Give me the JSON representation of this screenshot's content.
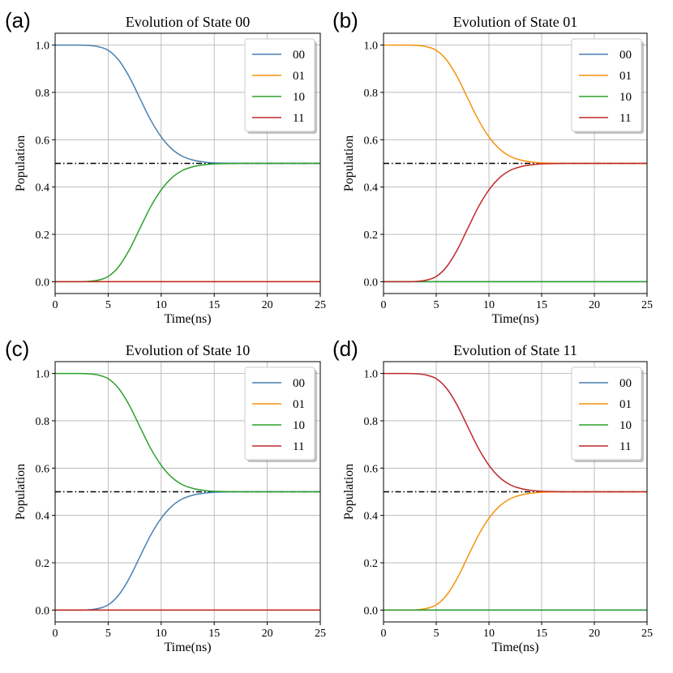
{
  "chart_data": [
    {
      "type": "line",
      "panel_label": "(a)",
      "title": "Evolution of State 00",
      "xlabel": "Time(ns)",
      "ylabel": "Population",
      "xlim": [
        0,
        25
      ],
      "ylim": [
        -0.05,
        1.05
      ],
      "xticks": [
        0,
        5,
        10,
        15,
        20,
        25
      ],
      "yticks": [
        0.0,
        0.2,
        0.4,
        0.6,
        0.8,
        1.0
      ],
      "xtick_labels": [
        "0",
        "5",
        "10",
        "15",
        "20",
        "25"
      ],
      "ytick_labels": [
        "0.0",
        "0.2",
        "0.4",
        "0.6",
        "0.8",
        "1.0"
      ],
      "grid": true,
      "legend_position": "top-right",
      "reference_line": {
        "y": 0.5,
        "style": "dash-dot",
        "color": "#000000"
      },
      "x": [
        0,
        1,
        2,
        3,
        4,
        5,
        6,
        7,
        8,
        9,
        10,
        11,
        12,
        13,
        14,
        15,
        16,
        17,
        18,
        19,
        20,
        21,
        22,
        23,
        24,
        25
      ],
      "series": [
        {
          "name": "00",
          "color": "#4a7fb0",
          "values": [
            1.0,
            1.0,
            1.0,
            0.999,
            0.994,
            0.978,
            0.936,
            0.865,
            0.774,
            0.684,
            0.612,
            0.561,
            0.53,
            0.514,
            0.506,
            0.502,
            0.501,
            0.5,
            0.5,
            0.5,
            0.5,
            0.5,
            0.5,
            0.5,
            0.5,
            0.5
          ]
        },
        {
          "name": "01",
          "color": "#f5920e",
          "values": [
            0.0,
            0.0,
            0.0,
            0.0,
            0.0,
            0.0,
            0.0,
            0.0,
            0.0,
            0.0,
            0.0,
            0.0,
            0.0,
            0.0,
            0.0,
            0.0,
            0.0,
            0.0,
            0.0,
            0.0,
            0.0,
            0.0,
            0.0,
            0.0,
            0.0,
            0.0
          ]
        },
        {
          "name": "10",
          "color": "#2ca02c",
          "values": [
            0.0,
            0.0,
            0.0,
            0.001,
            0.006,
            0.022,
            0.064,
            0.135,
            0.226,
            0.316,
            0.388,
            0.439,
            0.47,
            0.486,
            0.494,
            0.498,
            0.499,
            0.5,
            0.5,
            0.5,
            0.5,
            0.5,
            0.5,
            0.5,
            0.5,
            0.5
          ]
        },
        {
          "name": "11",
          "color": "#c0282b",
          "values": [
            0.0,
            0.0,
            0.0,
            0.0,
            0.0,
            0.0,
            0.0,
            0.0,
            0.0,
            0.0,
            0.0,
            0.0,
            0.0,
            0.0,
            0.0,
            0.0,
            0.0,
            0.0,
            0.0,
            0.0,
            0.0,
            0.0,
            0.0,
            0.0,
            0.0,
            0.0
          ]
        }
      ]
    },
    {
      "type": "line",
      "panel_label": "(b)",
      "title": "Evolution of State 01",
      "xlabel": "Time(ns)",
      "ylabel": "Population",
      "xlim": [
        0,
        25
      ],
      "ylim": [
        -0.05,
        1.05
      ],
      "xticks": [
        0,
        5,
        10,
        15,
        20,
        25
      ],
      "yticks": [
        0.0,
        0.2,
        0.4,
        0.6,
        0.8,
        1.0
      ],
      "xtick_labels": [
        "0",
        "5",
        "10",
        "15",
        "20",
        "25"
      ],
      "ytick_labels": [
        "0.0",
        "0.2",
        "0.4",
        "0.6",
        "0.8",
        "1.0"
      ],
      "grid": true,
      "legend_position": "top-right",
      "reference_line": {
        "y": 0.5,
        "style": "dash-dot",
        "color": "#000000"
      },
      "x": [
        0,
        1,
        2,
        3,
        4,
        5,
        6,
        7,
        8,
        9,
        10,
        11,
        12,
        13,
        14,
        15,
        16,
        17,
        18,
        19,
        20,
        21,
        22,
        23,
        24,
        25
      ],
      "series": [
        {
          "name": "00",
          "color": "#4a7fb0",
          "values": [
            0.0,
            0.0,
            0.0,
            0.0,
            0.0,
            0.0,
            0.0,
            0.0,
            0.0,
            0.0,
            0.0,
            0.0,
            0.0,
            0.0,
            0.0,
            0.0,
            0.0,
            0.0,
            0.0,
            0.0,
            0.0,
            0.0,
            0.0,
            0.0,
            0.0,
            0.0
          ]
        },
        {
          "name": "01",
          "color": "#f5920e",
          "values": [
            1.0,
            1.0,
            1.0,
            0.999,
            0.994,
            0.978,
            0.936,
            0.865,
            0.774,
            0.684,
            0.612,
            0.561,
            0.53,
            0.514,
            0.506,
            0.502,
            0.501,
            0.5,
            0.5,
            0.5,
            0.5,
            0.5,
            0.5,
            0.5,
            0.5,
            0.5
          ]
        },
        {
          "name": "10",
          "color": "#2ca02c",
          "values": [
            0.0,
            0.0,
            0.0,
            0.0,
            0.0,
            0.0,
            0.0,
            0.0,
            0.0,
            0.0,
            0.0,
            0.0,
            0.0,
            0.0,
            0.0,
            0.0,
            0.0,
            0.0,
            0.0,
            0.0,
            0.0,
            0.0,
            0.0,
            0.0,
            0.0,
            0.0
          ]
        },
        {
          "name": "11",
          "color": "#c0282b",
          "values": [
            0.0,
            0.0,
            0.0,
            0.001,
            0.006,
            0.022,
            0.064,
            0.135,
            0.226,
            0.316,
            0.388,
            0.439,
            0.47,
            0.486,
            0.494,
            0.498,
            0.499,
            0.5,
            0.5,
            0.5,
            0.5,
            0.5,
            0.5,
            0.5,
            0.5,
            0.5
          ]
        }
      ]
    },
    {
      "type": "line",
      "panel_label": "(c)",
      "title": "Evolution of State 10",
      "xlabel": "Time(ns)",
      "ylabel": "Population",
      "xlim": [
        0,
        25
      ],
      "ylim": [
        -0.05,
        1.05
      ],
      "xticks": [
        0,
        5,
        10,
        15,
        20,
        25
      ],
      "yticks": [
        0.0,
        0.2,
        0.4,
        0.6,
        0.8,
        1.0
      ],
      "xtick_labels": [
        "0",
        "5",
        "10",
        "15",
        "20",
        "25"
      ],
      "ytick_labels": [
        "0.0",
        "0.2",
        "0.4",
        "0.6",
        "0.8",
        "1.0"
      ],
      "grid": true,
      "legend_position": "top-right",
      "reference_line": {
        "y": 0.5,
        "style": "dash-dot",
        "color": "#000000"
      },
      "x": [
        0,
        1,
        2,
        3,
        4,
        5,
        6,
        7,
        8,
        9,
        10,
        11,
        12,
        13,
        14,
        15,
        16,
        17,
        18,
        19,
        20,
        21,
        22,
        23,
        24,
        25
      ],
      "series": [
        {
          "name": "00",
          "color": "#4a7fb0",
          "values": [
            0.0,
            0.0,
            0.0,
            0.001,
            0.006,
            0.022,
            0.064,
            0.135,
            0.226,
            0.316,
            0.388,
            0.439,
            0.47,
            0.486,
            0.494,
            0.498,
            0.499,
            0.5,
            0.5,
            0.5,
            0.5,
            0.5,
            0.5,
            0.5,
            0.5,
            0.5
          ]
        },
        {
          "name": "01",
          "color": "#f5920e",
          "values": [
            0.0,
            0.0,
            0.0,
            0.0,
            0.0,
            0.0,
            0.0,
            0.0,
            0.0,
            0.0,
            0.0,
            0.0,
            0.0,
            0.0,
            0.0,
            0.0,
            0.0,
            0.0,
            0.0,
            0.0,
            0.0,
            0.0,
            0.0,
            0.0,
            0.0,
            0.0
          ]
        },
        {
          "name": "10",
          "color": "#2ca02c",
          "values": [
            1.0,
            1.0,
            1.0,
            0.999,
            0.994,
            0.978,
            0.936,
            0.865,
            0.774,
            0.684,
            0.612,
            0.561,
            0.53,
            0.514,
            0.506,
            0.502,
            0.501,
            0.5,
            0.5,
            0.5,
            0.5,
            0.5,
            0.5,
            0.5,
            0.5,
            0.5
          ]
        },
        {
          "name": "11",
          "color": "#c0282b",
          "values": [
            0.0,
            0.0,
            0.0,
            0.0,
            0.0,
            0.0,
            0.0,
            0.0,
            0.0,
            0.0,
            0.0,
            0.0,
            0.0,
            0.0,
            0.0,
            0.0,
            0.0,
            0.0,
            0.0,
            0.0,
            0.0,
            0.0,
            0.0,
            0.0,
            0.0,
            0.0
          ]
        }
      ]
    },
    {
      "type": "line",
      "panel_label": "(d)",
      "title": "Evolution of State 11",
      "xlabel": "Time(ns)",
      "ylabel": "Population",
      "xlim": [
        0,
        25
      ],
      "ylim": [
        -0.05,
        1.05
      ],
      "xticks": [
        0,
        5,
        10,
        15,
        20,
        25
      ],
      "yticks": [
        0.0,
        0.2,
        0.4,
        0.6,
        0.8,
        1.0
      ],
      "xtick_labels": [
        "0",
        "5",
        "10",
        "15",
        "20",
        "25"
      ],
      "ytick_labels": [
        "0.0",
        "0.2",
        "0.4",
        "0.6",
        "0.8",
        "1.0"
      ],
      "grid": true,
      "legend_position": "top-right",
      "reference_line": {
        "y": 0.5,
        "style": "dash-dot",
        "color": "#000000"
      },
      "x": [
        0,
        1,
        2,
        3,
        4,
        5,
        6,
        7,
        8,
        9,
        10,
        11,
        12,
        13,
        14,
        15,
        16,
        17,
        18,
        19,
        20,
        21,
        22,
        23,
        24,
        25
      ],
      "series": [
        {
          "name": "00",
          "color": "#4a7fb0",
          "values": [
            0.0,
            0.0,
            0.0,
            0.0,
            0.0,
            0.0,
            0.0,
            0.0,
            0.0,
            0.0,
            0.0,
            0.0,
            0.0,
            0.0,
            0.0,
            0.0,
            0.0,
            0.0,
            0.0,
            0.0,
            0.0,
            0.0,
            0.0,
            0.0,
            0.0,
            0.0
          ]
        },
        {
          "name": "01",
          "color": "#f5920e",
          "values": [
            0.0,
            0.0,
            0.0,
            0.001,
            0.006,
            0.022,
            0.064,
            0.135,
            0.226,
            0.316,
            0.388,
            0.439,
            0.47,
            0.486,
            0.494,
            0.498,
            0.499,
            0.5,
            0.5,
            0.5,
            0.5,
            0.5,
            0.5,
            0.5,
            0.5,
            0.5
          ]
        },
        {
          "name": "10",
          "color": "#2ca02c",
          "values": [
            0.0,
            0.0,
            0.0,
            0.0,
            0.0,
            0.0,
            0.0,
            0.0,
            0.0,
            0.0,
            0.0,
            0.0,
            0.0,
            0.0,
            0.0,
            0.0,
            0.0,
            0.0,
            0.0,
            0.0,
            0.0,
            0.0,
            0.0,
            0.0,
            0.0,
            0.0
          ]
        },
        {
          "name": "11",
          "color": "#c0282b",
          "values": [
            1.0,
            1.0,
            1.0,
            0.999,
            0.994,
            0.978,
            0.936,
            0.865,
            0.774,
            0.684,
            0.612,
            0.561,
            0.53,
            0.514,
            0.506,
            0.502,
            0.501,
            0.5,
            0.5,
            0.5,
            0.5,
            0.5,
            0.5,
            0.5,
            0.5,
            0.5
          ]
        }
      ]
    }
  ]
}
